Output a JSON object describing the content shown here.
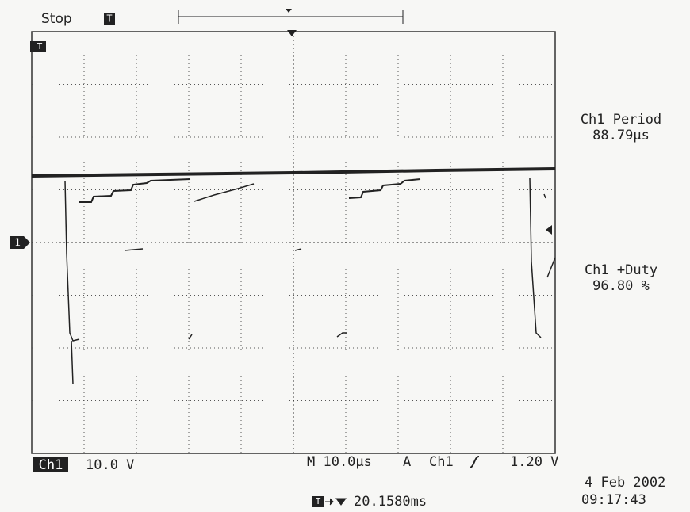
{
  "header": {
    "status": "Stop",
    "trigger_marker": "T"
  },
  "screen": {
    "channel_marker": "1",
    "trigger_level_marker": "T"
  },
  "measurements": [
    {
      "label": "Ch1 Period",
      "value": "88.79µs"
    },
    {
      "label": "Ch1 +Duty",
      "value": "96.80 %"
    }
  ],
  "footer": {
    "channel": "Ch1",
    "volts_per_div": "10.0 V",
    "timebase": "M 10.0µs",
    "mode": "A",
    "trigger_source": "Ch1",
    "trigger_level": "1.20 V",
    "trigger_position_icon": "T",
    "trigger_position": "20.1580ms",
    "date": "4 Feb 2002",
    "time": "09:17:43"
  }
}
